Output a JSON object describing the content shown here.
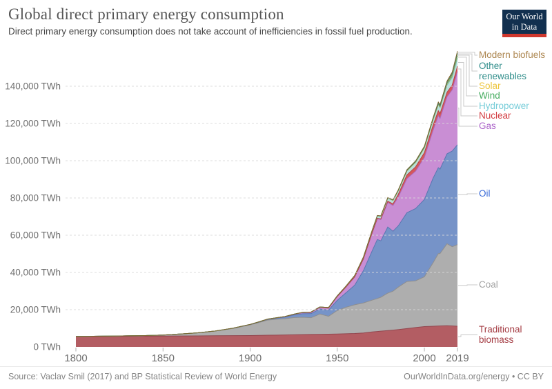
{
  "header": {
    "title": "Global direct primary energy consumption",
    "subtitle": "Direct primary energy consumption does not take account of inefficiencies in fossil fuel production.",
    "logo": {
      "line1": "Our World",
      "line2": "in Data",
      "bg_color": "#12304f",
      "bar_color": "#d0382e"
    }
  },
  "footer": {
    "source": "Source: Vaclav Smil (2017) and BP Statistical Review of World Energy",
    "link": "OurWorldInData.org/energy • CC BY"
  },
  "chart_data": {
    "type": "area",
    "stacked": true,
    "title": "Global direct primary energy consumption",
    "xlabel": "",
    "ylabel": "",
    "unit": "TWh",
    "xlim": [
      1800,
      2019
    ],
    "ylim": [
      0,
      158800
    ],
    "x_ticks": [
      1800,
      1850,
      1900,
      1950,
      2000,
      2019
    ],
    "y_ticks": [
      0,
      20000,
      40000,
      60000,
      80000,
      100000,
      120000,
      140000
    ],
    "y_tick_suffix": " TWh",
    "grid": "horizontal-dashed",
    "legend_position": "right",
    "x": [
      1800,
      1810,
      1820,
      1830,
      1840,
      1850,
      1860,
      1870,
      1880,
      1890,
      1900,
      1905,
      1910,
      1915,
      1920,
      1925,
      1930,
      1935,
      1940,
      1945,
      1950,
      1955,
      1960,
      1965,
      1970,
      1973,
      1975,
      1979,
      1982,
      1985,
      1990,
      1995,
      2000,
      2005,
      2008,
      2009,
      2013,
      2016,
      2019
    ],
    "series": [
      {
        "key": "traditional_biomass",
        "name": "Traditional biomass",
        "fill": "#b35d63",
        "stroke": "#92464e",
        "label_color": "#a43b42",
        "values": [
          5556,
          5611,
          5667,
          5722,
          5778,
          5833,
          5889,
          5944,
          6000,
          6056,
          6111,
          6194,
          6278,
          6361,
          6444,
          6528,
          6611,
          6694,
          6778,
          6861,
          6944,
          7083,
          7222,
          7500,
          8056,
          8300,
          8472,
          8800,
          9028,
          9306,
          9861,
          10417,
          10926,
          11100,
          11250,
          11290,
          11400,
          11300,
          11111
        ]
      },
      {
        "key": "coal",
        "name": "Coal",
        "fill": "#aeaeae",
        "stroke": "#8f8f8f",
        "label_color": "#a2a2a2",
        "values": [
          97,
          128,
          153,
          264,
          356,
          569,
          1061,
          1642,
          2542,
          3856,
          5728,
          6900,
          8100,
          8500,
          8700,
          9200,
          9300,
          9000,
          10900,
          9600,
          12603,
          14200,
          15400,
          16100,
          17056,
          17700,
          18200,
          20100,
          20900,
          22800,
          25300,
          25100,
          26738,
          34100,
          38800,
          38900,
          44000,
          42500,
          43849
        ]
      },
      {
        "key": "oil",
        "name": "Oil",
        "fill": "#7693c8",
        "stroke": "#5a76b0",
        "label_color": "#3a6bd8",
        "values": [
          0,
          0,
          0,
          0,
          0,
          0,
          1,
          9,
          30,
          92,
          181,
          250,
          400,
          560,
          889,
          1400,
          1900,
          2200,
          2700,
          3300,
          5444,
          7800,
          10504,
          17300,
          26400,
          31700,
          30300,
          35500,
          32200,
          32900,
          36900,
          38800,
          41500,
          45400,
          46200,
          45300,
          48300,
          51400,
          53620
        ]
      },
      {
        "key": "gas",
        "name": "Gas",
        "fill": "#c98ed4",
        "stroke": "#aa6bbd",
        "label_color": "#ab62c9",
        "values": [
          0,
          0,
          0,
          0,
          0,
          0,
          0,
          0,
          10,
          30,
          64,
          100,
          141,
          180,
          233,
          350,
          604,
          700,
          872,
          1100,
          2092,
          3100,
          4472,
          6304,
          9614,
          11200,
          11400,
          13200,
          13800,
          15400,
          18300,
          20100,
          22600,
          25700,
          27900,
          27200,
          30600,
          32900,
          39292
        ]
      },
      {
        "key": "nuclear",
        "name": "Nuclear",
        "fill": "#d5585d",
        "stroke": "#b93f46",
        "label_color": "#d23c41",
        "values": [
          0,
          0,
          0,
          0,
          0,
          0,
          0,
          0,
          0,
          0,
          0,
          0,
          0,
          0,
          0,
          0,
          0,
          0,
          0,
          0,
          0,
          0,
          8,
          26,
          79,
          203,
          370,
          640,
          873,
          1489,
          2001,
          2322,
          2540,
          2722,
          2691,
          2610,
          2420,
          2571,
          2796
        ]
      },
      {
        "key": "hydropower",
        "name": "Hydropower",
        "fill": "#b8e0dc",
        "stroke": "#8cc4c0",
        "label_color": "#77cdd9",
        "values": [
          0,
          0,
          0,
          0,
          0,
          0,
          0,
          0,
          0,
          3,
          17,
          25,
          35,
          48,
          64,
          89,
          123,
          160,
          207,
          260,
          334,
          439,
          689,
          918,
          1160,
          1290,
          1450,
          1710,
          1870,
          1954,
          2159,
          2457,
          2614,
          2934,
          3153,
          3210,
          3756,
          3990,
          4222
        ]
      },
      {
        "key": "wind",
        "name": "Wind",
        "fill": "#85bf79",
        "stroke": "#61a35a",
        "label_color": "#44ab5e",
        "values": [
          0,
          0,
          0,
          0,
          0,
          0,
          0,
          0,
          0,
          0,
          0,
          0,
          0,
          0,
          0,
          0,
          0,
          0,
          0,
          0,
          0,
          0,
          0,
          0,
          0,
          0,
          0,
          0,
          0,
          0,
          4,
          8,
          31,
          104,
          221,
          276,
          645,
          959,
          1430
        ]
      },
      {
        "key": "solar",
        "name": "Solar",
        "fill": "#eadf7d",
        "stroke": "#cdbd52",
        "label_color": "#edc53d",
        "values": [
          0,
          0,
          0,
          0,
          0,
          0,
          0,
          0,
          0,
          0,
          0,
          0,
          0,
          0,
          0,
          0,
          0,
          0,
          0,
          0,
          0,
          0,
          0,
          0,
          0,
          0,
          0,
          0,
          0,
          0,
          0,
          0,
          1,
          4,
          12,
          20,
          132,
          328,
          724
        ]
      },
      {
        "key": "other_renewables",
        "name": "Other renewables",
        "fill": "#56a394",
        "stroke": "#3b857a",
        "label_color": "#2f8d8a",
        "values": [
          0,
          0,
          0,
          0,
          0,
          0,
          0,
          0,
          0,
          0,
          1,
          2,
          3,
          4,
          6,
          8,
          10,
          12,
          15,
          18,
          21,
          30,
          42,
          56,
          75,
          90,
          100,
          130,
          160,
          200,
          260,
          300,
          340,
          400,
          430,
          440,
          520,
          580,
          652
        ]
      },
      {
        "key": "modern_biofuels",
        "name": "Modern biofuels",
        "fill": "#a38a50",
        "stroke": "#7e6630",
        "label_color": "#ad8751",
        "values": [
          0,
          0,
          0,
          0,
          0,
          0,
          0,
          0,
          0,
          0,
          0,
          0,
          0,
          0,
          0,
          0,
          0,
          0,
          0,
          0,
          0,
          0,
          0,
          0,
          90,
          100,
          110,
          140,
          200,
          280,
          380,
          420,
          480,
          620,
          830,
          870,
          1000,
          1050,
          1102
        ]
      }
    ]
  }
}
